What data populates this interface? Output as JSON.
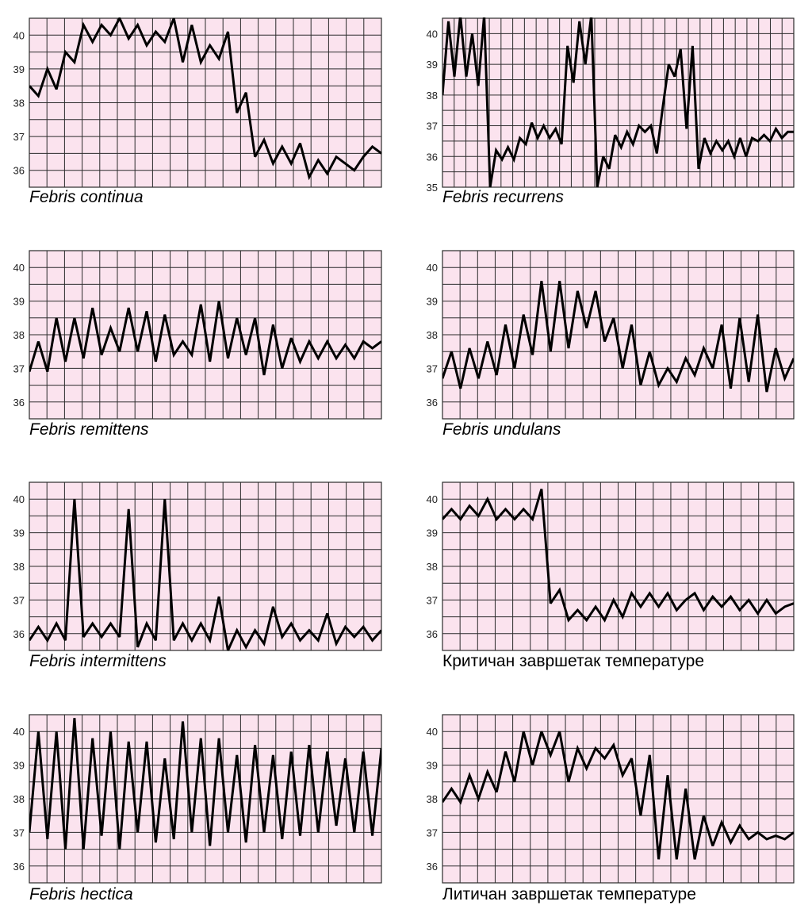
{
  "chart_data": [
    {
      "type": "line",
      "caption": "Febris continua",
      "caption_italic": true,
      "ylim": [
        35.5,
        40.5
      ],
      "y_ticks": [
        36,
        37,
        38,
        39,
        40
      ],
      "grid": true,
      "x": [
        0,
        0.5,
        1,
        1.5,
        2,
        2.5,
        3,
        3.5,
        4,
        4.5,
        5,
        5.5,
        6,
        6.5,
        7,
        7.5,
        8,
        8.5,
        9,
        9.5,
        10,
        10.5,
        11,
        11.5,
        12,
        12.5,
        13,
        13.5,
        14,
        14.5,
        15,
        15.5,
        16,
        16.5,
        17,
        17.5,
        18,
        18.5,
        19,
        19.5
      ],
      "values": [
        38.5,
        38.2,
        39.0,
        38.4,
        39.5,
        39.2,
        40.3,
        39.8,
        40.3,
        40.0,
        40.5,
        39.9,
        40.3,
        39.7,
        40.1,
        39.8,
        40.5,
        39.2,
        40.3,
        39.2,
        39.7,
        39.3,
        40.1,
        37.7,
        38.3,
        36.4,
        36.9,
        36.2,
        36.7,
        36.2,
        36.8,
        35.8,
        36.3,
        35.9,
        36.4,
        36.2,
        36.0,
        36.4,
        36.7,
        36.5
      ]
    },
    {
      "type": "line",
      "caption": "Febris recurrens",
      "caption_italic": true,
      "ylim": [
        35,
        40.5
      ],
      "y_ticks": [
        35,
        36,
        37,
        38,
        39,
        40
      ],
      "grid": true,
      "x": [
        0,
        0.5,
        1,
        1.5,
        2,
        2.5,
        3,
        3.5,
        4,
        4.5,
        5,
        5.5,
        6,
        6.5,
        7,
        7.5,
        8,
        8.5,
        9,
        9.5,
        10,
        10.5,
        11,
        11.5,
        12,
        12.5,
        13,
        13.5,
        14,
        14.5,
        15,
        15.5,
        16,
        16.5,
        17,
        17.5,
        18,
        18.5,
        19,
        19.5,
        20,
        20.5,
        21,
        21.5,
        22,
        22.5,
        23,
        23.5,
        24,
        24.5,
        25,
        25.5,
        26,
        26.5,
        27,
        27.5,
        28,
        28.5,
        29,
        29.5
      ],
      "values": [
        38.0,
        40.4,
        38.6,
        40.6,
        38.6,
        40.0,
        38.3,
        40.6,
        35.0,
        36.2,
        35.9,
        36.3,
        35.9,
        36.6,
        36.4,
        37.1,
        36.6,
        37.0,
        36.6,
        36.9,
        36.4,
        39.6,
        38.4,
        40.4,
        39.0,
        40.6,
        35.0,
        36.0,
        35.6,
        36.7,
        36.3,
        36.8,
        36.4,
        37.0,
        36.8,
        37.0,
        36.1,
        37.6,
        39.0,
        38.6,
        39.5,
        36.9,
        39.6,
        35.6,
        36.6,
        36.1,
        36.5,
        36.2,
        36.5,
        36.0,
        36.6,
        36.0,
        36.6,
        36.5,
        36.7,
        36.5,
        36.9,
        36.6,
        36.8,
        36.8
      ]
    },
    {
      "type": "line",
      "caption": "Febris remittens",
      "caption_italic": true,
      "ylim": [
        35.5,
        40.5
      ],
      "y_ticks": [
        36,
        37,
        38,
        39,
        40
      ],
      "grid": true,
      "x": [
        0,
        0.5,
        1,
        1.5,
        2,
        2.5,
        3,
        3.5,
        4,
        4.5,
        5,
        5.5,
        6,
        6.5,
        7,
        7.5,
        8,
        8.5,
        9,
        9.5,
        10,
        10.5,
        11,
        11.5,
        12,
        12.5,
        13,
        13.5,
        14,
        14.5,
        15,
        15.5,
        16,
        16.5,
        17,
        17.5,
        18,
        18.5,
        19,
        19.5
      ],
      "values": [
        36.9,
        37.8,
        36.9,
        38.5,
        37.2,
        38.5,
        37.3,
        38.8,
        37.4,
        38.2,
        37.5,
        38.8,
        37.5,
        38.7,
        37.2,
        38.6,
        37.4,
        37.8,
        37.4,
        38.9,
        37.2,
        39.0,
        37.3,
        38.5,
        37.4,
        38.5,
        36.8,
        38.3,
        37.0,
        37.9,
        37.2,
        37.8,
        37.3,
        37.8,
        37.3,
        37.7,
        37.3,
        37.8,
        37.6,
        37.8
      ]
    },
    {
      "type": "line",
      "caption": "Febris undulans",
      "caption_italic": true,
      "ylim": [
        35.5,
        40.5
      ],
      "y_ticks": [
        36,
        37,
        38,
        39,
        40
      ],
      "grid": true,
      "x": [
        0,
        0.5,
        1,
        1.5,
        2,
        2.5,
        3,
        3.5,
        4,
        4.5,
        5,
        5.5,
        6,
        6.5,
        7,
        7.5,
        8,
        8.5,
        9,
        9.5,
        10,
        10.5,
        11,
        11.5,
        12,
        12.5,
        13,
        13.5,
        14,
        14.5,
        15,
        15.5,
        16,
        16.5,
        17,
        17.5,
        18,
        18.5,
        19,
        19.5
      ],
      "values": [
        36.7,
        37.5,
        36.4,
        37.6,
        36.7,
        37.8,
        36.8,
        38.3,
        37.0,
        38.6,
        37.4,
        39.6,
        37.5,
        39.6,
        37.6,
        39.3,
        38.2,
        39.3,
        37.8,
        38.5,
        37.0,
        38.3,
        36.5,
        37.5,
        36.5,
        37.0,
        36.6,
        37.3,
        36.8,
        37.6,
        37.0,
        38.3,
        36.4,
        38.5,
        36.6,
        38.6,
        36.3,
        37.6,
        36.7,
        37.3
      ]
    },
    {
      "type": "line",
      "caption": "Febris intermittens",
      "caption_italic": true,
      "ylim": [
        35.5,
        40.5
      ],
      "y_ticks": [
        36,
        37,
        38,
        39,
        40
      ],
      "grid": true,
      "x": [
        0,
        0.5,
        1,
        1.5,
        2,
        2.5,
        3,
        3.5,
        4,
        4.5,
        5,
        5.5,
        6,
        6.5,
        7,
        7.5,
        8,
        8.5,
        9,
        9.5,
        10,
        10.5,
        11,
        11.5,
        12,
        12.5,
        13,
        13.5,
        14,
        14.5,
        15,
        15.5,
        16,
        16.5,
        17,
        17.5,
        18,
        18.5,
        19,
        19.5
      ],
      "values": [
        35.8,
        36.2,
        35.8,
        36.3,
        35.8,
        40.0,
        35.9,
        36.3,
        35.9,
        36.3,
        35.9,
        39.7,
        35.6,
        36.3,
        35.8,
        40.0,
        35.8,
        36.3,
        35.8,
        36.3,
        35.8,
        37.1,
        35.5,
        36.1,
        35.6,
        36.1,
        35.7,
        36.8,
        35.9,
        36.3,
        35.8,
        36.1,
        35.8,
        36.6,
        35.7,
        36.2,
        35.9,
        36.2,
        35.8,
        36.1
      ]
    },
    {
      "type": "line",
      "caption": "Критичан завршетак температуре",
      "caption_italic": false,
      "ylim": [
        35.5,
        40.5
      ],
      "y_ticks": [
        36,
        37,
        38,
        39,
        40
      ],
      "grid": true,
      "x": [
        0,
        0.5,
        1,
        1.5,
        2,
        2.5,
        3,
        3.5,
        4,
        4.5,
        5,
        5.5,
        6,
        6.5,
        7,
        7.5,
        8,
        8.5,
        9,
        9.5,
        10,
        10.5,
        11,
        11.5,
        12,
        12.5,
        13,
        13.5,
        14,
        14.5,
        15,
        15.5,
        16,
        16.5,
        17,
        17.5,
        18,
        18.5,
        19,
        19.5
      ],
      "values": [
        39.4,
        39.7,
        39.4,
        39.8,
        39.5,
        40.0,
        39.4,
        39.7,
        39.4,
        39.7,
        39.4,
        40.3,
        36.9,
        37.3,
        36.4,
        36.7,
        36.4,
        36.8,
        36.4,
        37.0,
        36.5,
        37.2,
        36.8,
        37.2,
        36.8,
        37.2,
        36.7,
        37.0,
        37.2,
        36.7,
        37.1,
        36.8,
        37.1,
        36.7,
        37.0,
        36.6,
        37.0,
        36.6,
        36.8,
        36.9
      ]
    },
    {
      "type": "line",
      "caption": "Febris hectica",
      "caption_italic": true,
      "ylim": [
        35.5,
        40.5
      ],
      "y_ticks": [
        36,
        37,
        38,
        39,
        40
      ],
      "grid": true,
      "x": [
        0,
        0.5,
        1,
        1.5,
        2,
        2.5,
        3,
        3.5,
        4,
        4.5,
        5,
        5.5,
        6,
        6.5,
        7,
        7.5,
        8,
        8.5,
        9,
        9.5,
        10,
        10.5,
        11,
        11.5,
        12,
        12.5,
        13,
        13.5,
        14,
        14.5,
        15,
        15.5,
        16,
        16.5,
        17,
        17.5,
        18,
        18.5,
        19,
        19.5
      ],
      "values": [
        37.0,
        40.0,
        36.8,
        40.0,
        36.5,
        40.4,
        36.5,
        39.8,
        36.9,
        40.0,
        36.5,
        39.7,
        37.0,
        39.7,
        36.7,
        39.2,
        36.8,
        40.3,
        37.0,
        39.8,
        36.6,
        39.8,
        37.0,
        39.3,
        36.7,
        39.6,
        37.0,
        39.3,
        36.8,
        39.4,
        36.9,
        39.6,
        37.0,
        39.4,
        37.2,
        39.2,
        37.0,
        39.4,
        36.9,
        39.5
      ]
    },
    {
      "type": "line",
      "caption": "Литичан завршетак температуре",
      "caption_italic": false,
      "ylim": [
        35.5,
        40.5
      ],
      "y_ticks": [
        36,
        37,
        38,
        39,
        40
      ],
      "grid": true,
      "x": [
        0,
        0.5,
        1,
        1.5,
        2,
        2.5,
        3,
        3.5,
        4,
        4.5,
        5,
        5.5,
        6,
        6.5,
        7,
        7.5,
        8,
        8.5,
        9,
        9.5,
        10,
        10.5,
        11,
        11.5,
        12,
        12.5,
        13,
        13.5,
        14,
        14.5,
        15,
        15.5,
        16,
        16.5,
        17,
        17.5,
        18,
        18.5,
        19,
        19.5
      ],
      "values": [
        37.9,
        38.3,
        37.9,
        38.7,
        38.0,
        38.8,
        38.2,
        39.4,
        38.5,
        40.0,
        39.0,
        40.0,
        39.3,
        40.0,
        38.5,
        39.5,
        38.9,
        39.5,
        39.2,
        39.6,
        38.7,
        39.2,
        37.5,
        39.3,
        36.2,
        38.7,
        36.2,
        38.3,
        36.2,
        37.5,
        36.6,
        37.3,
        36.7,
        37.2,
        36.8,
        37.0,
        36.8,
        36.9,
        36.8,
        37.0
      ]
    }
  ],
  "style": {
    "background": "#fbe3ee",
    "grid_color": "#2b2b2b",
    "line_color": "#000000",
    "text_color": "#000000"
  }
}
